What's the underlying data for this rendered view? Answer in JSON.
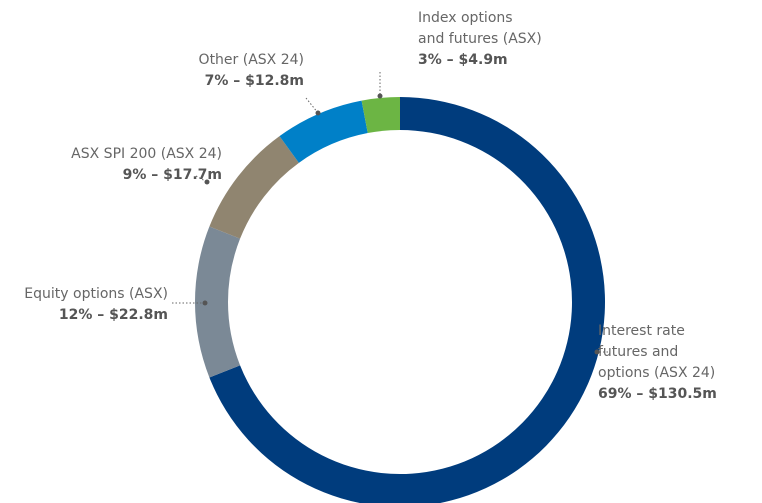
{
  "chart_data": {
    "type": "donut",
    "categories": [
      "Interest rate\nfutures and\noptions (ASX 24)",
      "Equity options (ASX)",
      "ASX SPI 200 (ASX 24)",
      "Other (ASX 24)",
      "Index options\nand futures (ASX)"
    ],
    "values": [
      69,
      12,
      9,
      7,
      3
    ],
    "value_labels": [
      "69% – $130.5m",
      "12% – $22.8m",
      "9% – $17.7m",
      "7% – $12.8m",
      "3% – $4.9m"
    ],
    "colors": [
      "#003c7d",
      "#7b8996",
      "#908570",
      "#0080c8",
      "#6cb544"
    ]
  }
}
